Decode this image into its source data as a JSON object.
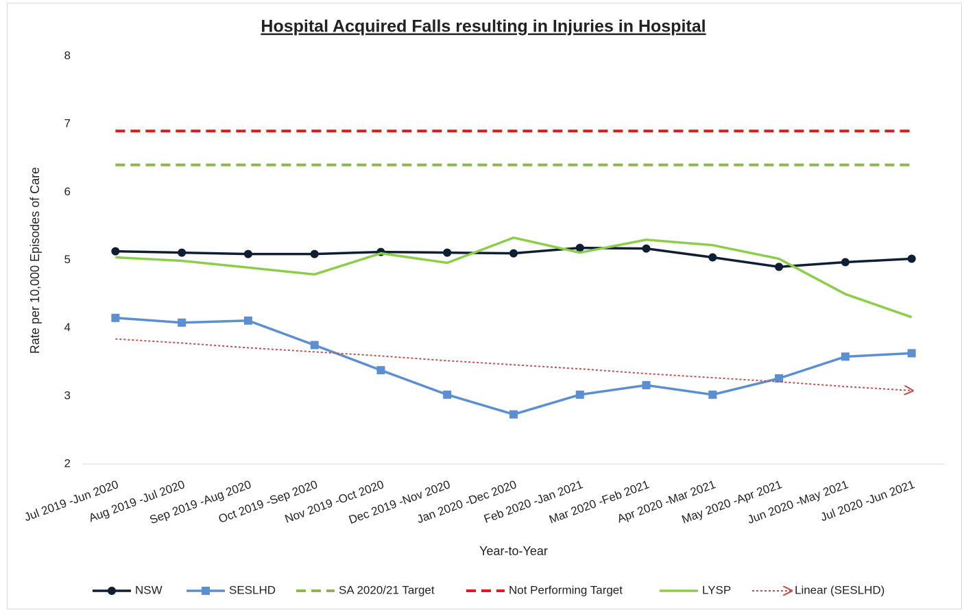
{
  "chart_data": {
    "type": "line",
    "title": "Hospital Acquired Falls resulting in Injuries in Hospital",
    "x_label": "Year-to-Year",
    "y_label": "Rate per 10,000 Episodes of Care",
    "categories": [
      "Jul 2019 -Jun 2020",
      "Aug 2019 -Jul 2020",
      "Sep 2019 -Aug 2020",
      "Oct 2019 -Sep 2020",
      "Nov 2019 -Oct 2020",
      "Dec 2019 -Nov 2020",
      "Jan 2020 -Dec 2020",
      "Feb 2020 -Jan 2021",
      "Mar 2020 -Feb 2021",
      "Apr 2020 -Mar 2021",
      "May 2020 -Apr 2021",
      "Jun 2020 -May 2021",
      "Jul 2020 -Jun 2021"
    ],
    "series": [
      {
        "name": "NSW",
        "color": "#0f1f33",
        "line_style": "solid",
        "marker": "circle",
        "values": [
          5.13,
          5.11,
          5.09,
          5.09,
          5.12,
          5.11,
          5.1,
          5.18,
          5.17,
          5.04,
          4.9,
          4.97,
          5.02
        ]
      },
      {
        "name": "SESLHD",
        "color": "#5b8fd1",
        "line_style": "solid",
        "marker": "square",
        "values": [
          4.15,
          4.08,
          4.11,
          3.75,
          3.38,
          3.02,
          2.73,
          3.02,
          3.16,
          3.02,
          3.26,
          3.58,
          3.63
        ]
      },
      {
        "name": "SA 2020/21 Target",
        "color": "#8db652",
        "line_style": "dashed",
        "values": [
          6.4,
          6.4,
          6.4,
          6.4,
          6.4,
          6.4,
          6.4,
          6.4,
          6.4,
          6.4,
          6.4,
          6.4,
          6.4
        ]
      },
      {
        "name": "Not Performing Target",
        "color": "#e31a1a",
        "line_style": "dashed",
        "values": [
          6.9,
          6.9,
          6.9,
          6.9,
          6.9,
          6.9,
          6.9,
          6.9,
          6.9,
          6.9,
          6.9,
          6.9,
          6.9
        ]
      },
      {
        "name": "LYSP",
        "color": "#8ccd4a",
        "line_style": "solid",
        "values": [
          5.04,
          4.99,
          4.89,
          4.79,
          5.1,
          4.96,
          5.33,
          5.11,
          5.3,
          5.22,
          5.02,
          4.5,
          4.16
        ]
      },
      {
        "name": "Linear (SESLHD)",
        "color": "#c0504d",
        "line_style": "dotted",
        "arrow": true,
        "values": [
          3.84,
          3.78,
          3.71,
          3.65,
          3.59,
          3.52,
          3.46,
          3.4,
          3.33,
          3.27,
          3.21,
          3.14,
          3.08
        ]
      }
    ],
    "ylim": [
      2,
      8
    ],
    "yticks": [
      2,
      3,
      4,
      5,
      6,
      7,
      8
    ],
    "grid": false,
    "legend": "bottom"
  }
}
